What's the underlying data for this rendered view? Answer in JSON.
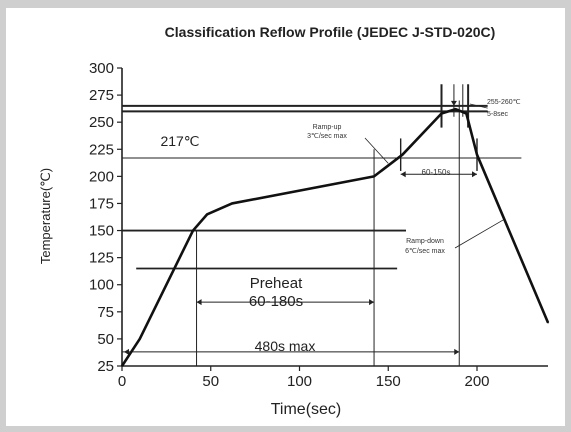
{
  "chart_data": {
    "type": "line",
    "title": "Classification Reflow Profile (JEDEC J-STD-020C)",
    "xlabel": "Time(sec)",
    "ylabel": "Temperature(℃)",
    "xlim": [
      0,
      240
    ],
    "ylim": [
      25,
      300
    ],
    "xticks": [
      0,
      50,
      100,
      150,
      200
    ],
    "yticks": [
      25,
      50,
      75,
      100,
      125,
      150,
      175,
      200,
      225,
      250,
      275,
      300
    ],
    "grid": false,
    "series": [
      {
        "x": [
          0,
          10,
          40,
          48,
          62,
          142,
          158,
          180,
          188,
          194,
          200,
          240
        ],
        "y": [
          25,
          50,
          150,
          165,
          175,
          200,
          220,
          258,
          262,
          258,
          220,
          65
        ]
      }
    ],
    "reference_lines": [
      {
        "y": 265,
        "x_range": [
          0,
          206
        ]
      },
      {
        "y": 260,
        "x_range": [
          0,
          206
        ]
      },
      {
        "y": 217,
        "x_range": [
          0,
          225
        ],
        "label": "217℃"
      },
      {
        "y": 150,
        "x_range": [
          0,
          160
        ]
      },
      {
        "y": 115,
        "x_range": [
          8,
          155
        ]
      }
    ],
    "annotations": [
      {
        "text": "Preheat"
      },
      {
        "text": "60-180s"
      },
      {
        "text": "480s max"
      },
      {
        "text": "Ramp-up"
      },
      {
        "text": "3℃/sec max"
      },
      {
        "text": "60-150s"
      },
      {
        "text": "255-260℃"
      },
      {
        "text": "5-8sec"
      },
      {
        "text": "Ramp-down"
      },
      {
        "text": "6℃/sec max"
      }
    ]
  }
}
